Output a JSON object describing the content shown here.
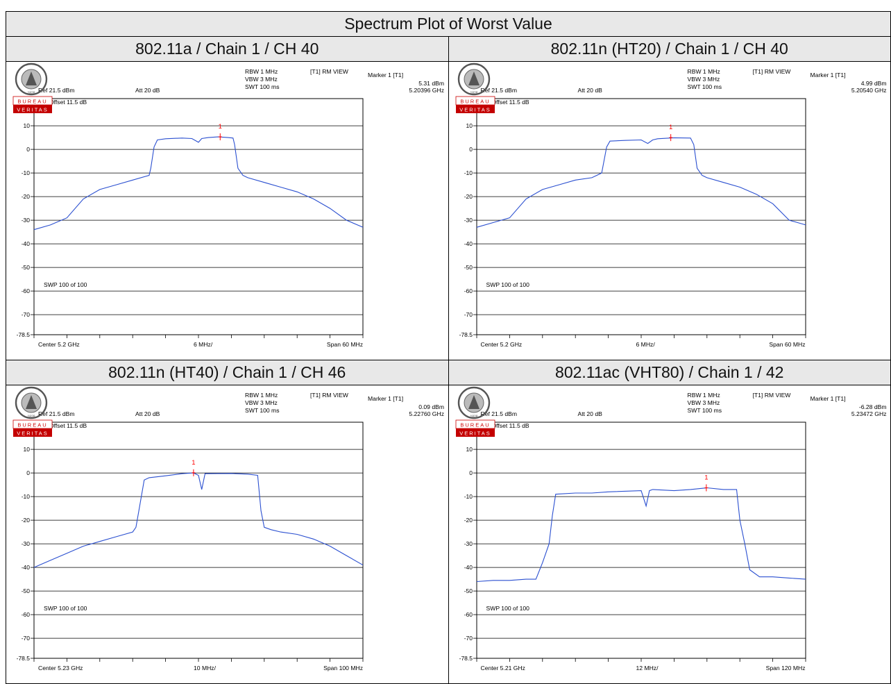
{
  "title": "Spectrum Plot of Worst Value",
  "colors": {
    "trace": "#2a4fd0",
    "marker": "#ff0000",
    "grid": "#000000",
    "header_bg": "#e8e8e8"
  },
  "logo": {
    "name": "Bureau Veritas",
    "text_top": "BUREAU",
    "text_bottom": "VERITAS",
    "year": "1828"
  },
  "chart_data": [
    {
      "type": "line",
      "title": "802.11a / Chain 1 / CH 40",
      "info": {
        "rbw": "RBW 1 MHz",
        "vbw": "VBW 3 MHz",
        "swt": "SWT 100 ms",
        "view": "[T1] RM VIEW",
        "marker_label": "Marker 1 [T1]",
        "marker_value": "5.31 dBm",
        "marker_freq": "5.20396 GHz",
        "ref": "Ref 21.5 dBm",
        "att": "Att  20 dB",
        "offset": "Offset 11.5 dB",
        "sweep": "SWP 100 of 100",
        "center": "Center 5.2 GHz",
        "div": "6 MHz/",
        "span": "Span 60 MHz"
      },
      "ylim": [
        -78.5,
        21.5
      ],
      "yticks": [
        "21.5",
        "10",
        "0",
        "-10",
        "-20",
        "-30",
        "-40",
        "-50",
        "-60",
        "-70",
        "-78.5"
      ],
      "xlim": [
        0,
        10
      ],
      "marker": {
        "x": 5.66,
        "y": 5.31,
        "label": "1"
      },
      "x": [
        0,
        0.5,
        1,
        1.5,
        2,
        2.5,
        3,
        3.5,
        3.55,
        3.65,
        3.75,
        4,
        4.5,
        4.8,
        5.0,
        5.1,
        5.3,
        5.6,
        5.9,
        6.05,
        6.1,
        6.2,
        6.35,
        6.5,
        7,
        7.5,
        8,
        8.5,
        9,
        9.5,
        10
      ],
      "y": [
        -34,
        -32,
        -29,
        -21,
        -17,
        -15,
        -13,
        -11,
        -8,
        1,
        4,
        4.5,
        4.8,
        4.6,
        3,
        4.6,
        5,
        5.3,
        5,
        4.8,
        2,
        -8,
        -11,
        -12,
        -14,
        -16,
        -18,
        -21,
        -25,
        -30,
        -33
      ]
    },
    {
      "type": "line",
      "title": "802.11n (HT20) / Chain 1 / CH 40",
      "info": {
        "rbw": "RBW 1 MHz",
        "vbw": "VBW 3 MHz",
        "swt": "SWT 100 ms",
        "view": "[T1] RM VIEW",
        "marker_label": "Marker 1 [T1]",
        "marker_value": "4.99 dBm",
        "marker_freq": "5.20540 GHz",
        "ref": "Ref 21.5 dBm",
        "att": "Att  20 dB",
        "offset": "Offset 11.5 dB",
        "sweep": "SWP 100 of 100",
        "center": "Center 5.2 GHz",
        "div": "6 MHz/",
        "span": "Span 60 MHz"
      },
      "ylim": [
        -78.5,
        21.5
      ],
      "yticks": [
        "21.5",
        "10",
        "0",
        "-10",
        "-20",
        "-30",
        "-40",
        "-50",
        "-60",
        "-70",
        "-78.5"
      ],
      "xlim": [
        0,
        10
      ],
      "marker": {
        "x": 5.9,
        "y": 4.99,
        "label": "1"
      },
      "x": [
        0,
        0.5,
        1,
        1.5,
        2,
        2.5,
        3,
        3.5,
        3.8,
        3.95,
        4.05,
        4.5,
        5.0,
        5.2,
        5.35,
        5.5,
        6,
        6.5,
        6.6,
        6.7,
        6.85,
        7,
        7.5,
        8,
        8.5,
        9,
        9.5,
        10
      ],
      "y": [
        -33,
        -31,
        -29,
        -21,
        -17,
        -15,
        -13,
        -12,
        -10,
        1,
        3.5,
        3.8,
        4,
        2.5,
        4,
        4.5,
        4.9,
        4.8,
        2,
        -8,
        -11,
        -12,
        -14,
        -16,
        -19,
        -23,
        -30,
        -32
      ]
    },
    {
      "type": "line",
      "title": "802.11n (HT40) / Chain 1 / CH 46",
      "info": {
        "rbw": "RBW 1 MHz",
        "vbw": "VBW 3 MHz",
        "swt": "SWT 100 ms",
        "view": "[T1] RM VIEW",
        "marker_label": "Marker 1 [T1]",
        "marker_value": "0.09 dBm",
        "marker_freq": "5.22760 GHz",
        "ref": "Ref 21.5 dBm",
        "att": "Att  20 dB",
        "offset": "Offset 11.5 dB",
        "sweep": "SWP 100 of 100",
        "center": "Center 5.23 GHz",
        "div": "10 MHz/",
        "span": "Span 100 MHz"
      },
      "ylim": [
        -78.5,
        21.5
      ],
      "yticks": [
        "21.5",
        "10",
        "0",
        "-10",
        "-20",
        "-30",
        "-40",
        "-50",
        "-60",
        "-70",
        "-78.5"
      ],
      "xlim": [
        0,
        10
      ],
      "marker": {
        "x": 4.85,
        "y": 0.09,
        "label": "1"
      },
      "x": [
        0,
        0.5,
        1,
        1.5,
        2,
        2.5,
        3,
        3.1,
        3.2,
        3.35,
        3.5,
        4,
        4.5,
        4.85,
        5.0,
        5.1,
        5.2,
        6,
        6.5,
        6.8,
        6.9,
        7.0,
        7.2,
        7.5,
        8,
        8.5,
        9,
        9.5,
        10
      ],
      "y": [
        -40,
        -37,
        -34,
        -31,
        -29,
        -27,
        -25,
        -23,
        -15,
        -3,
        -2,
        -1.2,
        -0.3,
        0,
        -1,
        -7,
        -0.3,
        -0.2,
        -0.5,
        -1,
        -16,
        -23,
        -24,
        -25,
        -26,
        -28,
        -31,
        -35,
        -39
      ]
    },
    {
      "type": "line",
      "title": "802.11ac (VHT80) / Chain 1 / 42",
      "info": {
        "rbw": "RBW 1 MHz",
        "vbw": "VBW 3 MHz",
        "swt": "SWT 100 ms",
        "view": "[T1] RM VIEW",
        "marker_label": "Marker 1 [T1]",
        "marker_value": "-6.28 dBm",
        "marker_freq": "5.23472 GHz",
        "ref": "Ref 21.5 dBm",
        "att": "Att  20 dB",
        "offset": "Offset 11.5 dB",
        "sweep": "SWP 100 of 100",
        "center": "Center 5.21 GHz",
        "div": "12 MHz/",
        "span": "Span 120 MHz"
      },
      "ylim": [
        -78.5,
        21.5
      ],
      "yticks": [
        "21.5",
        "10",
        "0",
        "-10",
        "-20",
        "-30",
        "-40",
        "-50",
        "-60",
        "-70",
        "-78.5"
      ],
      "xlim": [
        0,
        10
      ],
      "marker": {
        "x": 6.98,
        "y": -6.28,
        "label": "1"
      },
      "x": [
        0,
        0.5,
        1,
        1.5,
        1.8,
        2.0,
        2.2,
        2.3,
        2.4,
        3,
        3.5,
        4,
        5.0,
        5.15,
        5.25,
        5.35,
        6,
        6.5,
        7,
        7.5,
        7.9,
        8.0,
        8.15,
        8.3,
        8.6,
        9,
        9.5,
        10
      ],
      "y": [
        -46,
        -45.5,
        -45.5,
        -45,
        -45,
        -38,
        -30,
        -18,
        -9,
        -8.5,
        -8.5,
        -8,
        -7.5,
        -14,
        -7.5,
        -7,
        -7.5,
        -7,
        -6.3,
        -7,
        -7,
        -20,
        -30,
        -41,
        -44,
        -44,
        -44.5,
        -45
      ]
    }
  ]
}
